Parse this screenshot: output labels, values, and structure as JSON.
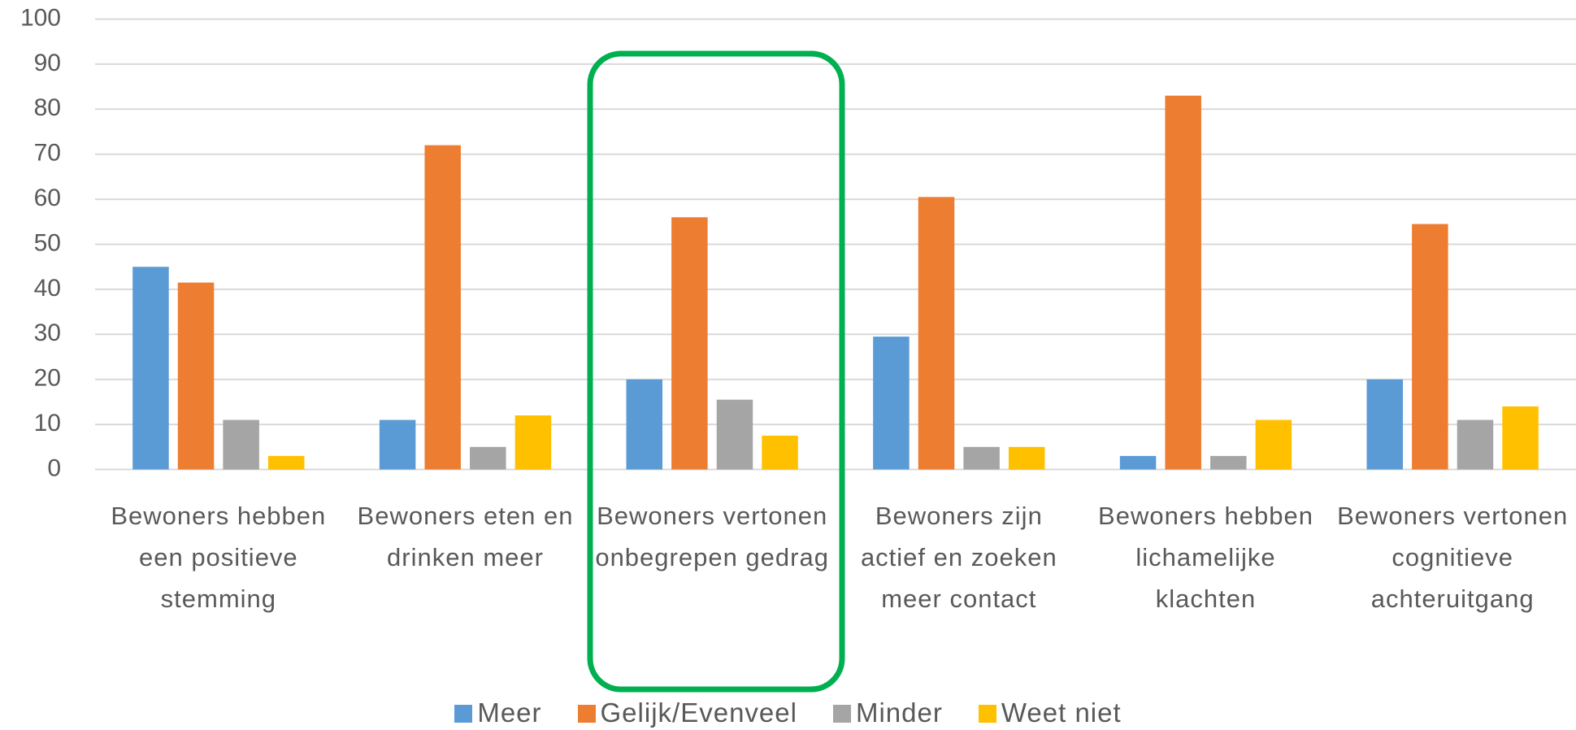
{
  "chart_data": {
    "type": "bar",
    "categories": [
      "Bewoners hebben een positieve stemming",
      "Bewoners eten en drinken meer",
      "Bewoners vertonen onbegrepen gedrag",
      "Bewoners zijn actief en zoeken meer contact",
      "Bewoners hebben lichamelijke klachten",
      "Bewoners vertonen cognitieve achteruitgang"
    ],
    "series": [
      {
        "name": "Meer",
        "color": "#5b9bd5",
        "values": [
          45,
          11,
          20,
          29.5,
          3,
          20
        ]
      },
      {
        "name": "Gelijk/Evenveel",
        "color": "#ed7d31",
        "values": [
          41.5,
          72,
          56,
          60.5,
          83,
          54.5
        ]
      },
      {
        "name": "Minder",
        "color": "#a5a5a5",
        "values": [
          11,
          5,
          15.5,
          5,
          3,
          11
        ]
      },
      {
        "name": "Weet niet",
        "color": "#ffc000",
        "values": [
          3,
          12,
          7.5,
          5,
          11,
          14
        ]
      }
    ],
    "ylim": [
      0,
      100
    ],
    "yticks": [
      0,
      10,
      20,
      30,
      40,
      50,
      60,
      70,
      80,
      90,
      100
    ],
    "grid": true,
    "legend": "bottom"
  }
}
